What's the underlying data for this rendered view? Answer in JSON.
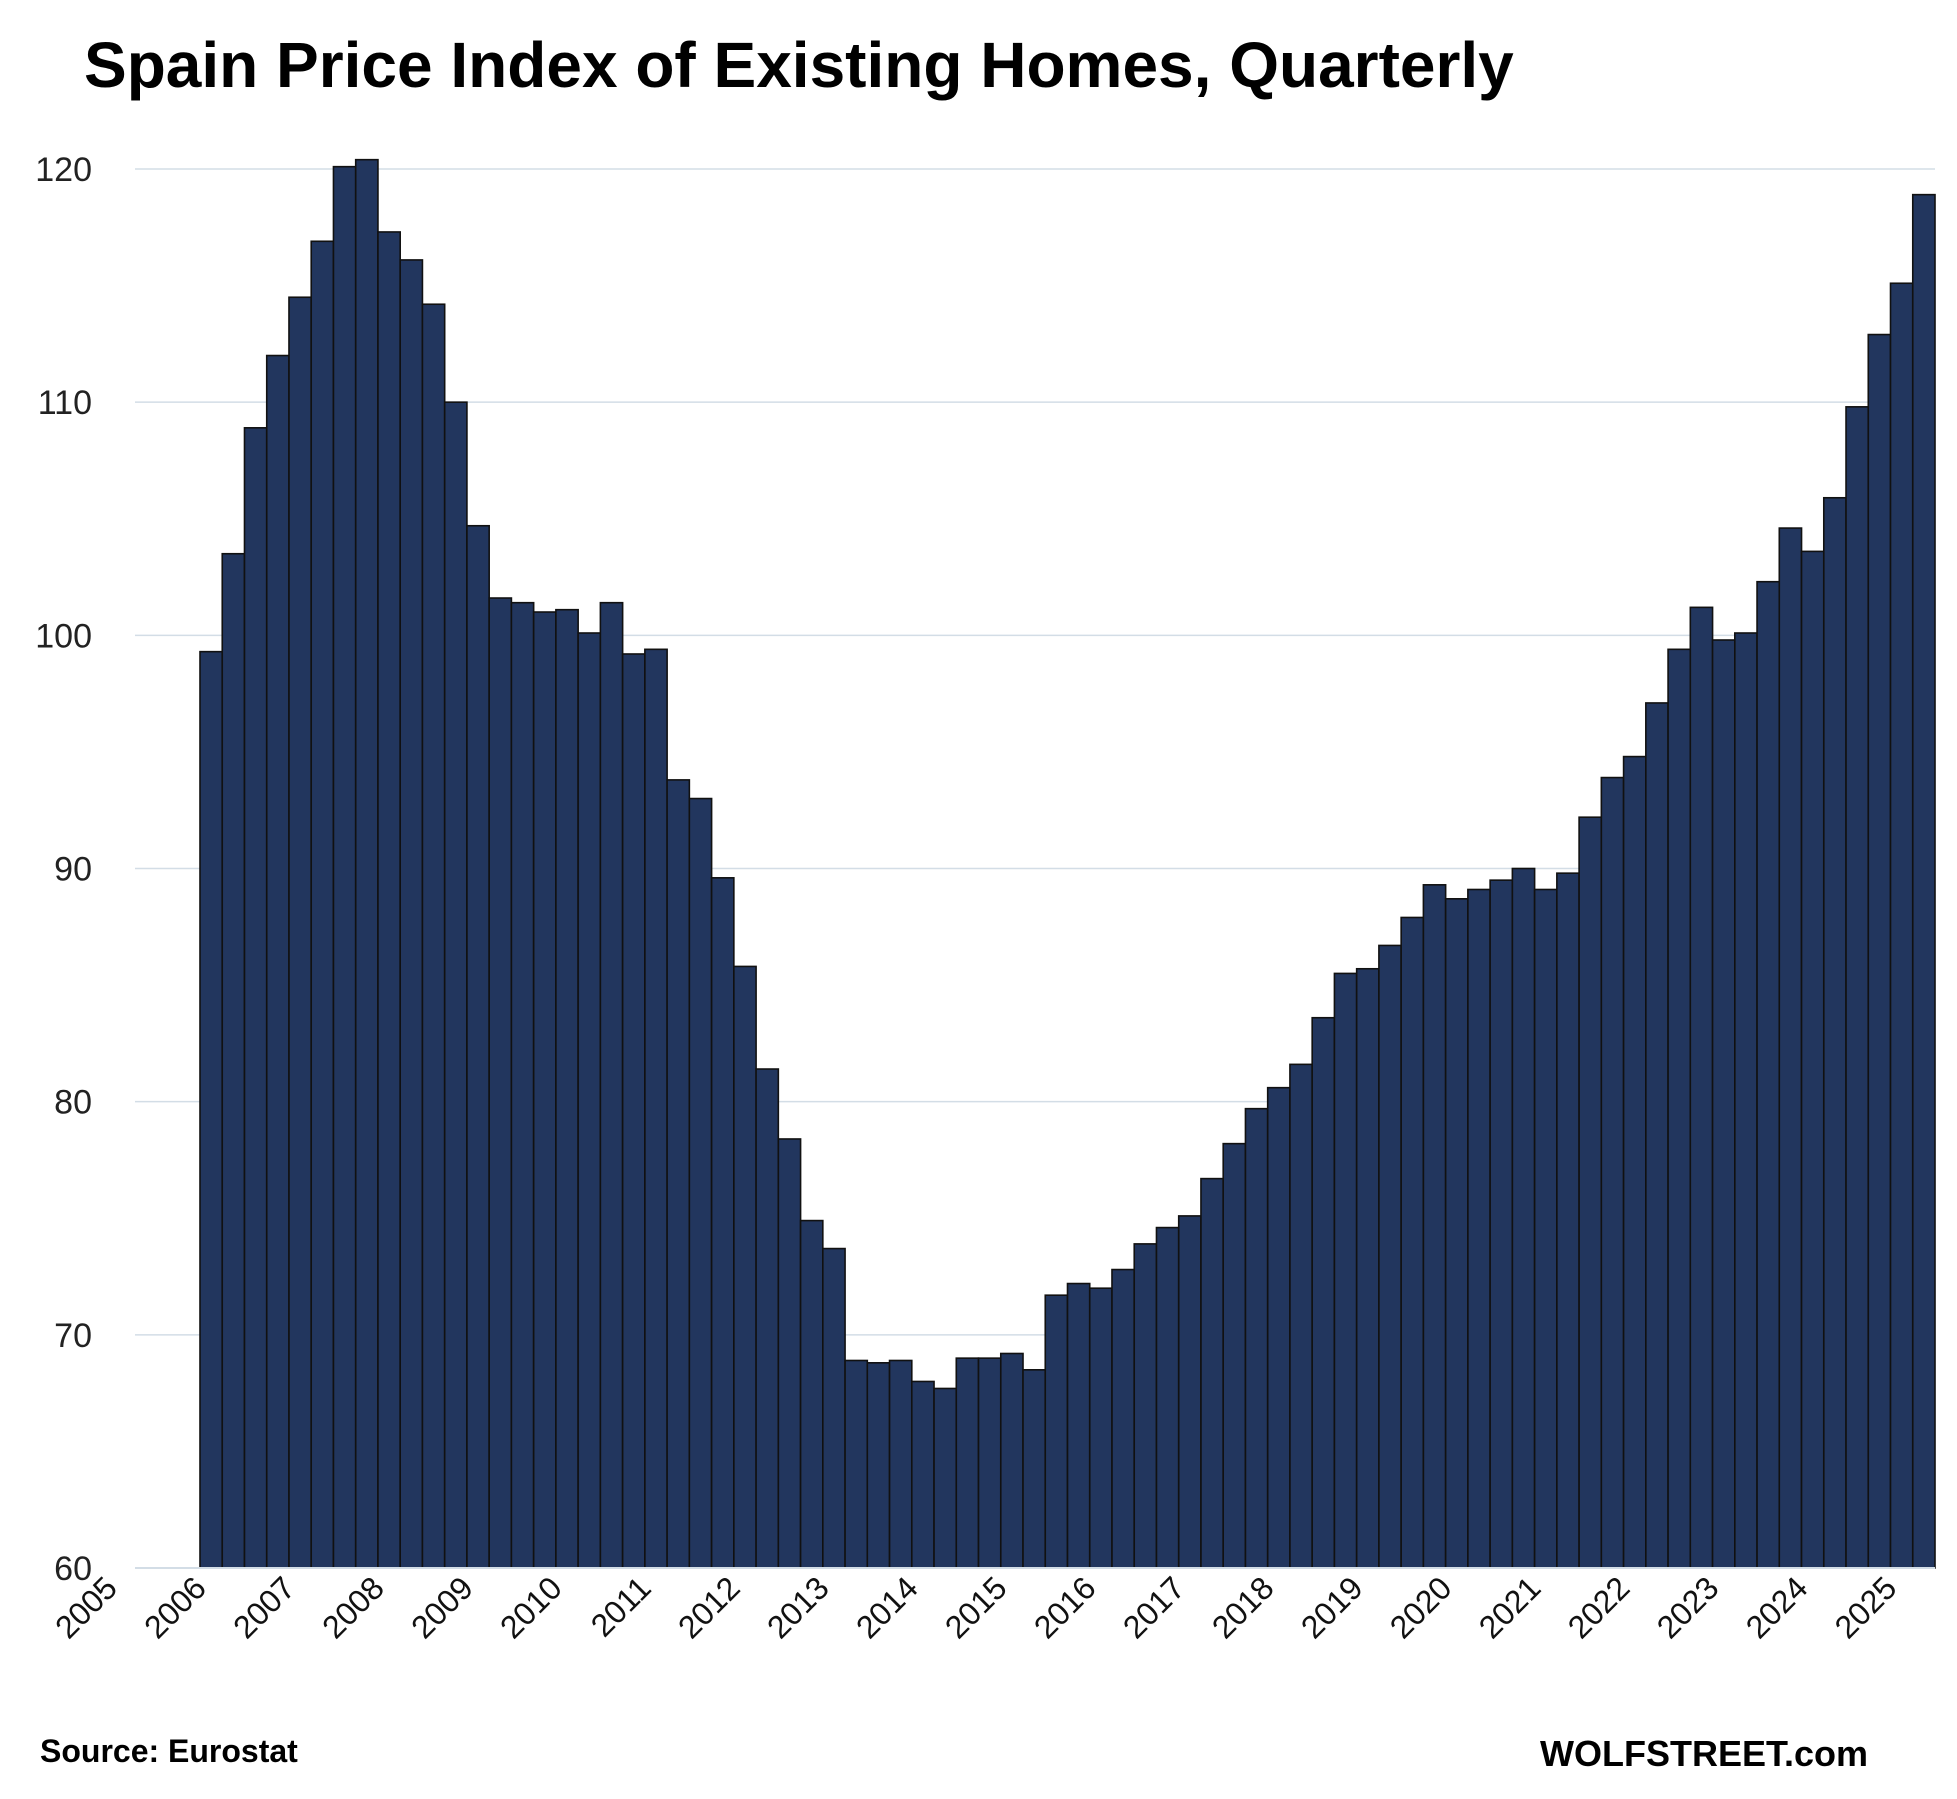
{
  "chart_data": {
    "type": "bar",
    "title": "Spain Price Index of Existing Homes, Quarterly",
    "xlabel": "",
    "ylabel": "",
    "ylim": [
      60,
      120
    ],
    "y_ticks": [
      60,
      70,
      80,
      90,
      100,
      110,
      120
    ],
    "x_ticks": [
      "2005",
      "2006",
      "2007",
      "2008",
      "2009",
      "2010",
      "2011",
      "2012",
      "2013",
      "2014",
      "2015",
      "2016",
      "2017",
      "2018",
      "2019",
      "2020",
      "2021",
      "2022",
      "2023",
      "2024",
      "2025"
    ],
    "grid": "horizontal",
    "bar_color": "#22365e",
    "bar_edge_color": "#111111",
    "grid_color": "#d3dde6",
    "series": [
      {
        "values": [
          99.3,
          103.5,
          108.9,
          112.0,
          114.5,
          116.9,
          120.1,
          120.4,
          117.3,
          116.1,
          114.2,
          110.0,
          104.7,
          101.6,
          101.4,
          101.0,
          101.1,
          100.1,
          101.4,
          99.2,
          99.4,
          93.8,
          93.0,
          89.6,
          85.8,
          81.4,
          78.4,
          74.9,
          73.7,
          68.9,
          68.8,
          68.9,
          68.0,
          67.7,
          69.0,
          69.0,
          69.2,
          68.5,
          71.7,
          72.2,
          72.0,
          72.8,
          73.9,
          74.6,
          75.1,
          76.7,
          78.2,
          79.7,
          80.6,
          81.6,
          83.6,
          85.5,
          85.7,
          86.7,
          87.9,
          89.3,
          88.7,
          89.1,
          89.5,
          90.0,
          89.1,
          89.8,
          92.2,
          93.9,
          94.8,
          97.1,
          99.4,
          101.2,
          99.8,
          100.1,
          102.3,
          104.6,
          103.6,
          105.9,
          109.8,
          112.9,
          115.1,
          118.9
        ]
      }
    ]
  },
  "footer": {
    "source": "Source: Eurostat",
    "brand": "WOLFSTREET.com"
  }
}
